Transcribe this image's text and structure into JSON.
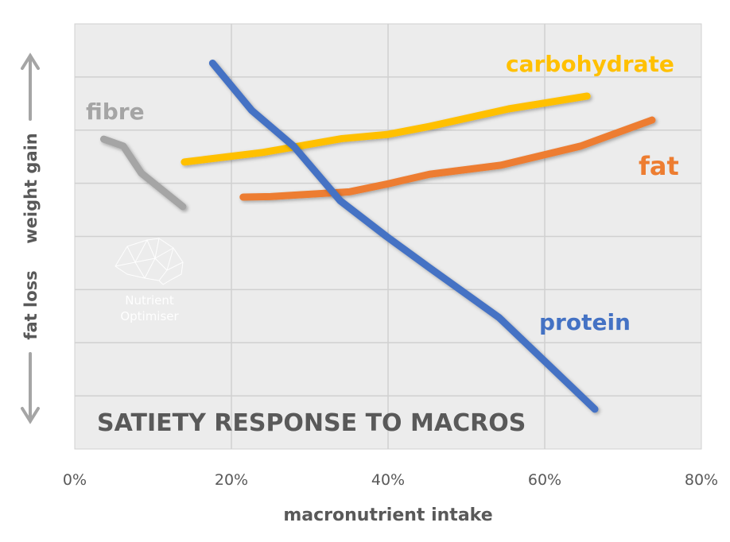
{
  "chart_data": {
    "type": "line",
    "title": "SATIETY RESPONSE TO MACROS",
    "xlabel": "macronutrient intake",
    "ylabel_top": "weight gain",
    "ylabel_bottom": "fat loss",
    "xlim": [
      0,
      80
    ],
    "ylim": [
      0,
      8
    ],
    "x_tick_labels": [
      "0%",
      "20%",
      "40%",
      "60%",
      "80%"
    ],
    "x_ticks": [
      0,
      20,
      40,
      60,
      80
    ],
    "grid": true,
    "watermark": "Nutrient Optimiser",
    "series": [
      {
        "name": "protein",
        "color": "#4472C4",
        "x": [
          17.6,
          22.6,
          28.0,
          33.9,
          39.8,
          45.3,
          54.2,
          66.4
        ],
        "y": [
          7.26,
          6.37,
          5.69,
          4.67,
          4.0,
          3.41,
          2.47,
          0.75
        ]
      },
      {
        "name": "carbohydrate",
        "color": "#FFC000",
        "x": [
          14.0,
          24.0,
          34.1,
          40.0,
          45.3,
          55.4,
          65.4
        ],
        "y": [
          5.4,
          5.58,
          5.84,
          5.92,
          6.07,
          6.4,
          6.64
        ]
      },
      {
        "name": "fat",
        "color": "#ED7D31",
        "x": [
          21.5,
          25.0,
          35.1,
          40.0,
          45.3,
          54.4,
          64.6,
          73.7
        ],
        "y": [
          4.74,
          4.75,
          4.84,
          4.99,
          5.17,
          5.34,
          5.7,
          6.19
        ]
      },
      {
        "name": "fibre",
        "color": "#A5A5A5",
        "x": [
          3.7,
          6.2,
          8.5,
          13.8
        ],
        "y": [
          5.83,
          5.7,
          5.19,
          4.56
        ]
      }
    ]
  }
}
